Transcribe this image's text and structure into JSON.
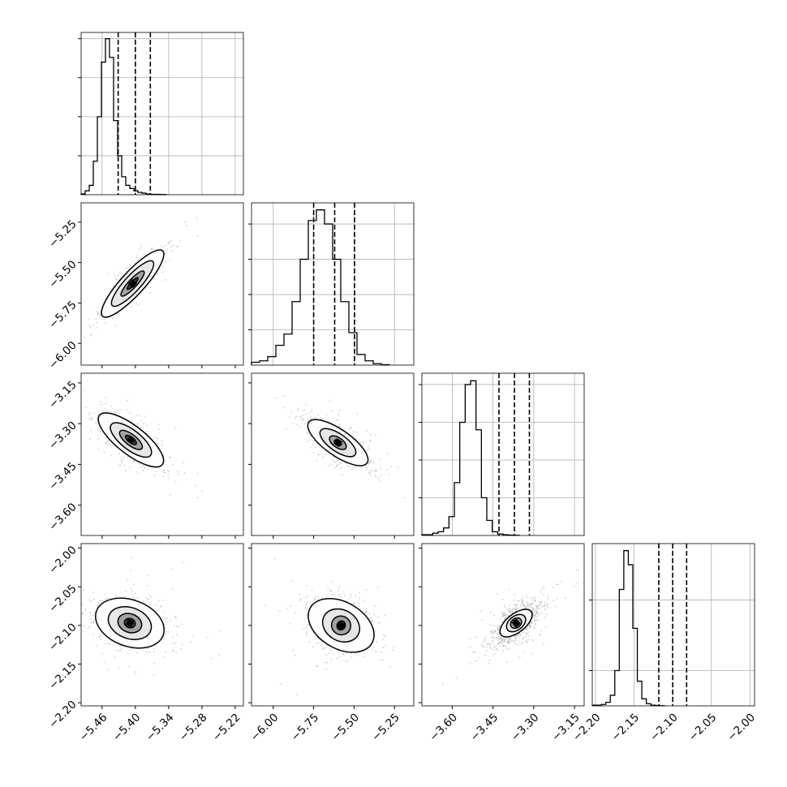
{
  "chart_data": {
    "type": "corner",
    "grid": true,
    "parameters": [
      {
        "ticks": [
          -5.46,
          -5.4,
          -5.34,
          -5.28,
          -5.22
        ],
        "tick_labels": [
          "−5.46",
          "−5.40",
          "−5.34",
          "−5.28",
          "−5.22"
        ],
        "range": [
          -5.4978,
          -5.2052
        ],
        "quantiles": [
          -5.431,
          -5.4,
          -5.373
        ],
        "median": -5.4
      },
      {
        "ticks": [
          -6.0,
          -5.75,
          -5.5,
          -5.25
        ],
        "tick_labels": [
          "−6.00",
          "−5.75",
          "−5.50",
          "−5.25"
        ],
        "range": [
          -6.1344,
          -5.1306
        ],
        "quantiles": [
          -5.75,
          -5.62,
          -5.497
        ],
        "median": -5.62
      },
      {
        "ticks": [
          -3.6,
          -3.45,
          -3.3,
          -3.15
        ],
        "tick_labels": [
          "−3.60",
          "−3.45",
          "−3.30",
          "−3.15"
        ],
        "range": [
          -3.7117,
          -3.1144
        ],
        "quantiles": [
          -3.428,
          -3.371,
          -3.316
        ],
        "median": -3.371
      },
      {
        "ticks": [
          -2.2,
          -2.15,
          -2.1,
          -2.05,
          -2.0
        ],
        "tick_labels": [
          "−2.20",
          "−2.15",
          "−2.10",
          "−2.05",
          "−2.00"
        ],
        "range": [
          -2.2041,
          -1.9941
        ],
        "quantiles": [
          -2.118,
          -2.1,
          -2.082
        ],
        "median": -2.1
      }
    ],
    "histograms": [
      {
        "x_start": -5.4978,
        "bin_width": 0.007315,
        "counts": [
          1,
          5,
          12,
          43,
          100,
          170,
          200,
          176,
          95,
          50,
          23,
          12,
          8,
          5,
          3,
          2,
          1,
          0.5,
          0.5,
          0.3,
          0.2
        ],
        "y_ticks": [
          50,
          100,
          150,
          200
        ],
        "y_max": 208
      },
      {
        "x_start": -6.1344,
        "bin_width": 0.05019,
        "counts": [
          4,
          6,
          12,
          28,
          44,
          90,
          150,
          205,
          220,
          200,
          150,
          90,
          46,
          15,
          6,
          2,
          0.5
        ],
        "y_ticks": [
          50,
          100,
          150,
          200
        ],
        "y_max": 230
      },
      {
        "x_start": -3.7117,
        "bin_width": 0.019913,
        "counts": [
          1,
          1,
          3,
          5,
          10,
          25,
          70,
          150,
          200,
          205,
          140,
          50,
          20,
          5,
          2,
          1,
          0.5,
          0.3
        ],
        "y_ticks": [
          50,
          100,
          150,
          200
        ],
        "y_max": 215
      },
      {
        "x_start": -2.2041,
        "bin_width": 0.00583,
        "counts": [
          1,
          1,
          2,
          5,
          15,
          50,
          165,
          220,
          200,
          110,
          35,
          10,
          3,
          1,
          0.5,
          0.3
        ],
        "y_ticks": [
          50,
          150
        ],
        "y_max": 230
      }
    ],
    "joint": [
      {
        "row": 1,
        "col": 0,
        "center": [
          -5.405,
          -5.63
        ],
        "angle_deg": 47.5,
        "contours": [
          [
            0.014,
            0.012
          ],
          [
            0.03,
            0.026
          ],
          [
            0.054,
            0.05
          ],
          [
            0.08,
            0.072
          ]
        ],
        "scatter_spread": [
          0.12,
          0.09
        ]
      },
      {
        "row": 2,
        "col": 0,
        "center": [
          -5.408,
          -3.36
        ],
        "angle_deg": -38,
        "contours": [
          [
            0.012,
            0.01
          ],
          [
            0.025,
            0.02
          ],
          [
            0.045,
            0.036
          ],
          [
            0.072,
            0.052
          ]
        ],
        "scatter_spread": [
          0.11,
          0.08
        ]
      },
      {
        "row": 2,
        "col": 1,
        "center": [
          -5.6,
          -3.37
        ],
        "angle_deg": -35,
        "contours": [
          [
            0.025,
            0.008
          ],
          [
            0.06,
            0.018
          ],
          [
            0.13,
            0.032
          ],
          [
            0.22,
            0.048
          ]
        ],
        "scatter_spread": [
          0.32,
          0.07
        ]
      },
      {
        "row": 3,
        "col": 0,
        "center": [
          -5.41,
          -2.097
        ],
        "angle_deg": -20,
        "contours": [
          [
            0.01,
            0.006
          ],
          [
            0.022,
            0.012
          ],
          [
            0.04,
            0.02
          ],
          [
            0.064,
            0.03
          ]
        ],
        "scatter_spread": [
          0.1,
          0.05
        ]
      },
      {
        "row": 3,
        "col": 1,
        "center": [
          -5.58,
          -2.1
        ],
        "angle_deg": -30,
        "contours": [
          [
            0.025,
            0.006
          ],
          [
            0.06,
            0.012
          ],
          [
            0.12,
            0.02
          ],
          [
            0.22,
            0.03
          ]
        ],
        "scatter_spread": [
          0.3,
          0.05
        ]
      },
      {
        "row": 3,
        "col": 2,
        "center": [
          -3.365,
          -2.097
        ],
        "angle_deg": 38,
        "contours": [
          [
            0.01,
            0.004
          ],
          [
            0.022,
            0.006
          ],
          [
            0.04,
            0.009
          ],
          [
            0.07,
            0.012
          ]
        ],
        "scatter_spread": [
          0.18,
          0.03
        ]
      }
    ],
    "colors": {
      "line": "#000000",
      "grid": "#b0b0b0",
      "points": "#9a9a9a",
      "fill_light": "#e6e6e6",
      "fill_mid": "#9e9e9e",
      "fill_dark": "#3a3a3a",
      "fill_peak": "#000000"
    }
  }
}
